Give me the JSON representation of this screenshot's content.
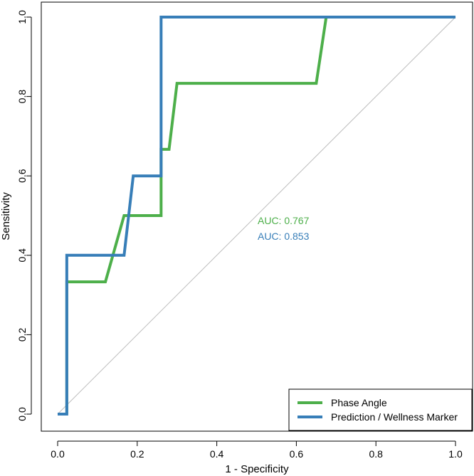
{
  "chart_data": {
    "type": "line",
    "title": "",
    "xlabel": "1 - Specificity",
    "ylabel": "Sensitivity",
    "xlim": [
      0,
      1
    ],
    "ylim": [
      0,
      1
    ],
    "xticks": [
      "0.0",
      "0.2",
      "0.4",
      "0.6",
      "0.8",
      "1.0"
    ],
    "yticks": [
      "0.0",
      "0.2",
      "0.4",
      "0.6",
      "0.8",
      "1.0"
    ],
    "xtick_values": [
      0,
      0.2,
      0.4,
      0.6,
      0.8,
      1.0
    ],
    "ytick_values": [
      0,
      0.2,
      0.4,
      0.6,
      0.8,
      1.0
    ],
    "reference_line": {
      "x": [
        0,
        1
      ],
      "y": [
        0,
        1
      ],
      "color": "#bdbdbd"
    },
    "series": [
      {
        "name": "Phase Angle",
        "color": "#4daf4a",
        "auc_label": "AUC: 0.767",
        "x": [
          0.023,
          0.023,
          0.12,
          0.167,
          0.26,
          0.26,
          0.28,
          0.3,
          0.65,
          0.675,
          1.0
        ],
        "y": [
          0.0,
          0.333,
          0.333,
          0.5,
          0.5,
          0.667,
          0.667,
          0.833,
          0.833,
          1.0,
          1.0
        ]
      },
      {
        "name": "Prediction / Wellness Marker",
        "color": "#377eb8",
        "auc_label": "AUC: 0.853",
        "x": [
          0.0,
          0.023,
          0.023,
          0.167,
          0.19,
          0.26,
          0.26,
          1.0
        ],
        "y": [
          0.0,
          0.0,
          0.4,
          0.4,
          0.6,
          0.6,
          1.0,
          1.0
        ]
      }
    ],
    "legend": {
      "position": "bottom-right",
      "entries": [
        "Phase Angle",
        "Prediction / Wellness Marker"
      ]
    }
  }
}
